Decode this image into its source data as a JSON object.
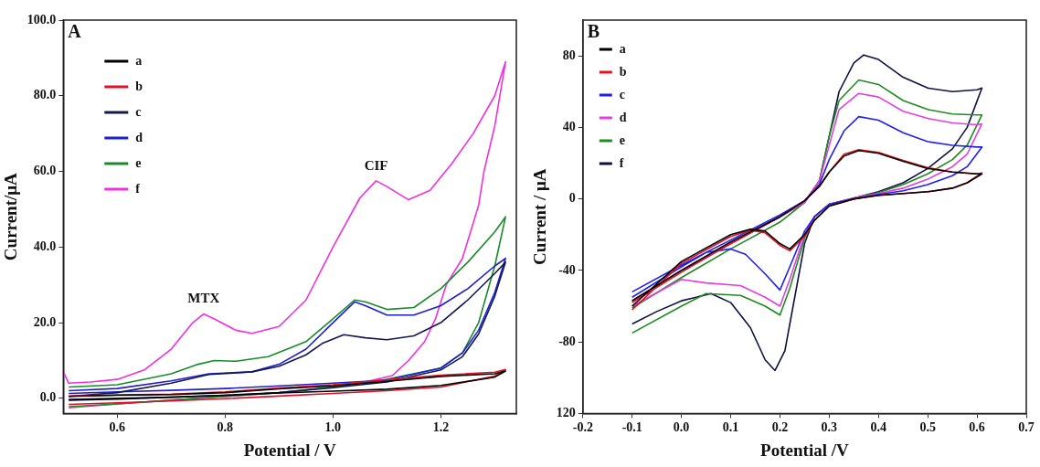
{
  "chart_data": [
    {
      "type": "line",
      "title": "A",
      "xlabel": "Potential / V",
      "ylabel": "Current/μA",
      "xlim": [
        0.5,
        1.34
      ],
      "ylim": [
        -4,
        100
      ],
      "xticks": [
        0.6,
        0.8,
        {
          "value": 1.0,
          "label": "1.0"
        },
        1.2
      ],
      "yticks": [
        {
          "value": 0,
          "label": "0.0"
        },
        {
          "value": 20,
          "label": "20.0"
        },
        {
          "value": 40,
          "label": "40.0"
        },
        {
          "value": 60,
          "label": "60.0"
        },
        {
          "value": 80,
          "label": "80.0"
        },
        {
          "value": 100,
          "label": "100.0"
        }
      ],
      "grid": false,
      "legend": "top left",
      "marker": "none",
      "line_style": "solid",
      "annotations": [
        {
          "text": "MTX",
          "x": 0.76,
          "y": 22.3
        },
        {
          "text": "CIF",
          "x": 1.08,
          "y": 57.5
        }
      ],
      "series": [
        {
          "name": "a",
          "color": "#000000",
          "x": [
            0.51,
            0.6,
            0.7,
            0.8,
            0.9,
            1.0,
            1.1,
            1.2,
            1.3,
            1.32,
            1.3,
            1.2,
            1.1,
            1.0,
            0.9,
            0.8,
            0.7,
            0.6,
            0.51
          ],
          "values": [
            0.5,
            0.8,
            1,
            1.5,
            2.5,
            3.3,
            4.5,
            5.8,
            6.5,
            7.2,
            5.6,
            3.4,
            2.4,
            1.9,
            1.4,
            0.8,
            0.3,
            -0.2,
            -0.5
          ]
        },
        {
          "name": "b",
          "color": "#e0102a",
          "x": [
            0.51,
            0.6,
            0.7,
            0.8,
            0.9,
            1.0,
            1.1,
            1.2,
            1.3,
            1.32,
            1.3,
            1.2,
            1.1,
            1.0,
            0.9,
            0.8,
            0.7,
            0.6,
            0.51
          ],
          "values": [
            0.6,
            0.9,
            1.1,
            1.7,
            2.7,
            3.6,
            4.9,
            6.1,
            6.9,
            7.6,
            5.9,
            3.0,
            2.0,
            1.3,
            0.6,
            -0.1,
            -0.7,
            -1.2,
            -1.6
          ]
        },
        {
          "name": "c",
          "color": "#141850",
          "x": [
            0.51,
            0.6,
            0.7,
            0.77,
            0.85,
            0.9,
            0.95,
            0.98,
            1.02,
            1.06,
            1.1,
            1.15,
            1.2,
            1.25,
            1.3,
            1.32,
            1.3,
            1.27,
            1.24,
            1.2,
            1.1,
            1.0,
            0.9,
            0.8,
            0.7,
            0.6,
            0.51
          ],
          "values": [
            0.5,
            1.5,
            4,
            6.3,
            7,
            8.5,
            11.5,
            14.5,
            16.8,
            16,
            15.5,
            16.5,
            20,
            26,
            33,
            36,
            27,
            17,
            11,
            7.5,
            4.3,
            2.8,
            1.5,
            0.8,
            0.3,
            0,
            -0.3
          ]
        },
        {
          "name": "d",
          "color": "#1f1fd0",
          "x": [
            0.51,
            0.6,
            0.7,
            0.77,
            0.85,
            0.9,
            0.95,
            1.0,
            1.04,
            1.06,
            1.1,
            1.15,
            1.2,
            1.25,
            1.3,
            1.32,
            1.3,
            1.27,
            1.24,
            1.2,
            1.1,
            1.0,
            0.9,
            0.8,
            0.7,
            0.6,
            0.51
          ],
          "values": [
            2,
            2.6,
            4.6,
            6.5,
            7,
            9,
            13,
            20,
            25.5,
            24.5,
            22,
            22,
            24.5,
            29,
            35,
            37,
            28,
            18,
            12,
            8,
            4.8,
            4,
            3.3,
            2.6,
            2.1,
            1.7,
            1.3
          ]
        },
        {
          "name": "e",
          "color": "#1a8a2a",
          "x": [
            0.51,
            0.6,
            0.7,
            0.75,
            0.78,
            0.82,
            0.88,
            0.95,
            1.0,
            1.04,
            1.06,
            1.1,
            1.15,
            1.2,
            1.25,
            1.3,
            1.32,
            1.3,
            1.27,
            1.24,
            1.2,
            1.1,
            1.0,
            0.9,
            0.8,
            0.7,
            0.6,
            0.51
          ],
          "values": [
            3,
            3.6,
            6.5,
            9,
            10,
            9.8,
            11,
            15,
            21,
            26,
            25.5,
            23.5,
            24,
            29,
            36,
            44,
            48,
            35,
            20,
            12,
            8,
            5,
            3,
            1.5,
            0.5,
            -0.5,
            -1.5,
            -2.2
          ]
        },
        {
          "name": "f",
          "color": "#f030e0",
          "x": [
            0.5,
            0.51,
            0.55,
            0.6,
            0.65,
            0.7,
            0.74,
            0.76,
            0.78,
            0.82,
            0.85,
            0.9,
            0.95,
            1.0,
            1.05,
            1.08,
            1.1,
            1.14,
            1.18,
            1.22,
            1.26,
            1.3,
            1.32,
            1.3,
            1.28,
            1.27,
            1.24,
            1.21,
            1.19,
            1.17,
            1.14,
            1.11,
            1.05,
            1.0,
            0.9,
            0.8,
            0.7,
            0.6,
            0.51
          ],
          "values": [
            7,
            4,
            4.3,
            5,
            7.5,
            13,
            20,
            22.3,
            21,
            18,
            17.2,
            19,
            26,
            40,
            53,
            57.5,
            56,
            52.5,
            55,
            62,
            70,
            80,
            89,
            72,
            60,
            51,
            37,
            30,
            21,
            15,
            10,
            6,
            4,
            3,
            1.5,
            0.5,
            -0.5,
            -1.5,
            -2.5
          ]
        }
      ]
    },
    {
      "type": "line",
      "title": "B",
      "xlabel": "Potential /V",
      "ylabel": "Current / μA",
      "xlim": [
        -0.2,
        0.7
      ],
      "ylim": [
        -120,
        100
      ],
      "xticks": [
        -0.2,
        -0.1,
        {
          "value": 0,
          "label": "0.0"
        },
        0.1,
        0.2,
        0.3,
        0.4,
        0.5,
        0.6,
        0.7
      ],
      "yticks": [
        {
          "value": -120,
          "label": "120"
        },
        -80,
        -40,
        0,
        40,
        80
      ],
      "grid": false,
      "legend": "top left",
      "marker": "none",
      "line_style": "solid",
      "series": [
        {
          "name": "a",
          "color": "#000000",
          "x": [
            -0.1,
            0,
            0.1,
            0.2,
            0.25,
            0.28,
            0.3,
            0.33,
            0.36,
            0.4,
            0.45,
            0.5,
            0.55,
            0.6,
            0.61,
            0.58,
            0.55,
            0.5,
            0.45,
            0.4,
            0.35,
            0.3,
            0.27,
            0.25,
            0.22,
            0.2,
            0.17,
            0.14,
            0.1,
            0,
            -0.1
          ],
          "values": [
            -57,
            -40,
            -24,
            -10,
            -1,
            7,
            15,
            24,
            27,
            25.5,
            21,
            17,
            15,
            14,
            14,
            9,
            6,
            4,
            3,
            2,
            0,
            -4,
            -12,
            -20,
            -28,
            -25,
            -18,
            -17,
            -20,
            -35,
            -60
          ]
        },
        {
          "name": "b",
          "color": "#e81020",
          "x": [
            -0.1,
            0,
            0.1,
            0.2,
            0.25,
            0.28,
            0.3,
            0.33,
            0.36,
            0.4,
            0.45,
            0.5,
            0.55,
            0.6,
            0.61,
            0.58,
            0.55,
            0.5,
            0.45,
            0.4,
            0.35,
            0.3,
            0.27,
            0.25,
            0.22,
            0.2,
            0.17,
            0.14,
            0.1,
            0,
            -0.1
          ],
          "values": [
            -58,
            -41,
            -25,
            -10,
            -1,
            7,
            15,
            25,
            27.5,
            26,
            21.5,
            17.5,
            15,
            14,
            14.5,
            9,
            6,
            4,
            3,
            2,
            0,
            -4,
            -12,
            -21,
            -29,
            -26,
            -19,
            -17.5,
            -21,
            -36,
            -62
          ]
        },
        {
          "name": "c",
          "color": "#2020f0",
          "x": [
            -0.1,
            0,
            0.1,
            0.2,
            0.25,
            0.28,
            0.3,
            0.33,
            0.36,
            0.4,
            0.45,
            0.5,
            0.55,
            0.6,
            0.61,
            0.58,
            0.55,
            0.5,
            0.45,
            0.4,
            0.35,
            0.3,
            0.27,
            0.25,
            0.22,
            0.2,
            0.17,
            0.13,
            0.1,
            0.05,
            0,
            -0.1
          ],
          "values": [
            -52,
            -37,
            -23,
            -9,
            -1,
            8,
            22,
            38,
            46,
            44,
            37,
            32,
            30,
            29,
            29,
            18,
            13,
            8,
            4.5,
            2.5,
            0,
            -3,
            -10,
            -18,
            -38,
            -51,
            -42,
            -31,
            -28,
            -30,
            -38,
            -55
          ]
        },
        {
          "name": "d",
          "color": "#e040e0",
          "x": [
            -0.1,
            0,
            0.1,
            0.2,
            0.25,
            0.28,
            0.3,
            0.32,
            0.36,
            0.4,
            0.45,
            0.5,
            0.55,
            0.6,
            0.61,
            0.58,
            0.55,
            0.5,
            0.45,
            0.4,
            0.35,
            0.3,
            0.27,
            0.25,
            0.22,
            0.2,
            0.17,
            0.12,
            0.05,
            0,
            -0.1
          ],
          "values": [
            -57,
            -40,
            -25,
            -10,
            -2,
            10,
            30,
            50,
            59,
            57,
            49,
            45,
            42.5,
            41.5,
            42,
            25,
            18,
            11,
            6,
            3,
            0.5,
            -3,
            -10,
            -20,
            -45,
            -60,
            -55,
            -48.5,
            -47,
            -45,
            -60
          ]
        },
        {
          "name": "e",
          "color": "#208a20",
          "x": [
            -0.1,
            0,
            0.1,
            0.2,
            0.25,
            0.28,
            0.3,
            0.32,
            0.36,
            0.4,
            0.45,
            0.5,
            0.55,
            0.6,
            0.61,
            0.58,
            0.55,
            0.5,
            0.45,
            0.4,
            0.35,
            0.3,
            0.27,
            0.25,
            0.22,
            0.2,
            0.17,
            0.12,
            0.05,
            0,
            -0.1
          ],
          "values": [
            -61,
            -44,
            -28,
            -13,
            -2,
            10,
            35,
            55,
            66.5,
            64,
            55,
            50,
            47.5,
            47,
            47,
            30,
            22,
            14,
            8,
            3.5,
            0.5,
            -3,
            -10,
            -22,
            -50,
            -65,
            -60,
            -54,
            -53,
            -60,
            -75
          ]
        },
        {
          "name": "f",
          "color": "#101040",
          "x": [
            -0.1,
            0,
            0.1,
            0.2,
            0.25,
            0.28,
            0.3,
            0.32,
            0.35,
            0.37,
            0.4,
            0.45,
            0.5,
            0.55,
            0.6,
            0.61,
            0.58,
            0.55,
            0.5,
            0.45,
            0.4,
            0.35,
            0.3,
            0.27,
            0.25,
            0.23,
            0.21,
            0.19,
            0.17,
            0.14,
            0.1,
            0.06,
            0,
            -0.05,
            -0.1
          ],
          "values": [
            -57,
            -40,
            -25,
            -10,
            -2,
            10,
            35,
            60,
            76,
            80.5,
            78,
            68,
            62,
            60,
            61,
            62,
            40,
            28,
            17,
            9,
            4,
            0.5,
            -3,
            -10,
            -25,
            -55,
            -85,
            -96,
            -90,
            -72,
            -58,
            -53,
            -57,
            -63,
            -70
          ]
        }
      ]
    }
  ]
}
